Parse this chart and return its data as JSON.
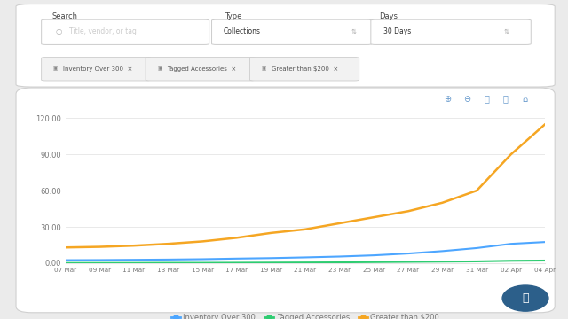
{
  "x_labels": [
    "07 Mar",
    "09 Mar",
    "11 Mar",
    "13 Mar",
    "15 Mar",
    "17 Mar",
    "19 Mar",
    "21 Mar",
    "23 Mar",
    "25 Mar",
    "27 Mar",
    "29 Mar",
    "31 Mar",
    "02 Apr",
    "04 Apr"
  ],
  "inventory_over_300": [
    2.5,
    2.6,
    2.8,
    3.0,
    3.3,
    3.8,
    4.2,
    4.8,
    5.5,
    6.5,
    8.0,
    10.0,
    12.5,
    16.0,
    17.5
  ],
  "tagged_accessories": [
    0.2,
    0.2,
    0.2,
    0.3,
    0.3,
    0.4,
    0.5,
    0.6,
    0.7,
    0.9,
    1.1,
    1.3,
    1.5,
    2.0,
    2.2
  ],
  "greater_than_200": [
    13.0,
    13.5,
    14.5,
    16.0,
    18.0,
    21.0,
    25.0,
    28.0,
    33.0,
    38.0,
    43.0,
    50.0,
    60.0,
    90.0,
    115.0
  ],
  "color_inventory": "#4da6ff",
  "color_tagged": "#2ecc71",
  "color_greater": "#f5a623",
  "ylim": [
    0,
    120
  ],
  "yticks": [
    0.0,
    30.0,
    60.0,
    90.0,
    120.0
  ],
  "bg_outer": "#ebebeb",
  "bg_chart": "#ffffff",
  "grid_color": "#e5e5e5",
  "label_color": "#777777",
  "legend_inventory": "Inventory Over 300",
  "legend_tagged": "Tagged Accessories",
  "legend_greater": "Greater than $200",
  "tag1": "Inventory Over 300",
  "tag2": "Tagged Accessories",
  "tag3": "Greater than $200"
}
